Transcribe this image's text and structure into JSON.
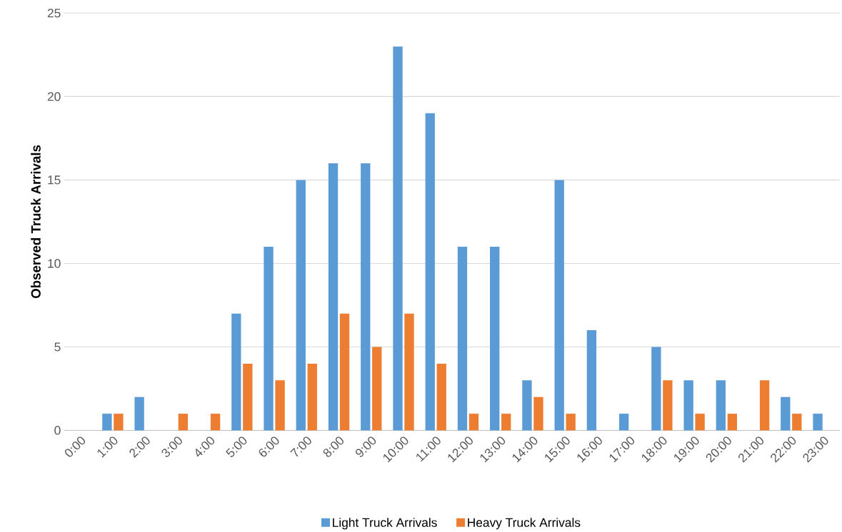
{
  "chart_data": {
    "type": "bar",
    "ylabel": "Observed Truck Arrivals",
    "categories": [
      "0:00",
      "1:00",
      "2:00",
      "3:00",
      "4:00",
      "5:00",
      "6:00",
      "7:00",
      "8:00",
      "9:00",
      "10:00",
      "11:00",
      "12:00",
      "13:00",
      "14:00",
      "15:00",
      "16:00",
      "17:00",
      "18:00",
      "19:00",
      "20:00",
      "21:00",
      "22:00",
      "23:00"
    ],
    "series": [
      {
        "name": "Light Truck Arrivals",
        "color": "#5b9bd5",
        "values": [
          0,
          1,
          2,
          0,
          0,
          7,
          11,
          15,
          16,
          16,
          23,
          19,
          11,
          11,
          3,
          15,
          6,
          1,
          5,
          3,
          3,
          0,
          2,
          1
        ]
      },
      {
        "name": "Heavy Truck Arrivals",
        "color": "#ed7d31",
        "values": [
          0,
          1,
          0,
          1,
          1,
          4,
          3,
          4,
          7,
          5,
          7,
          4,
          1,
          1,
          2,
          1,
          0,
          0,
          3,
          1,
          1,
          3,
          1,
          0
        ]
      }
    ],
    "ylim": [
      0,
      25
    ],
    "yticks": [
      0,
      5,
      10,
      15,
      20,
      25
    ],
    "grid": "y",
    "legend": "bottom"
  }
}
